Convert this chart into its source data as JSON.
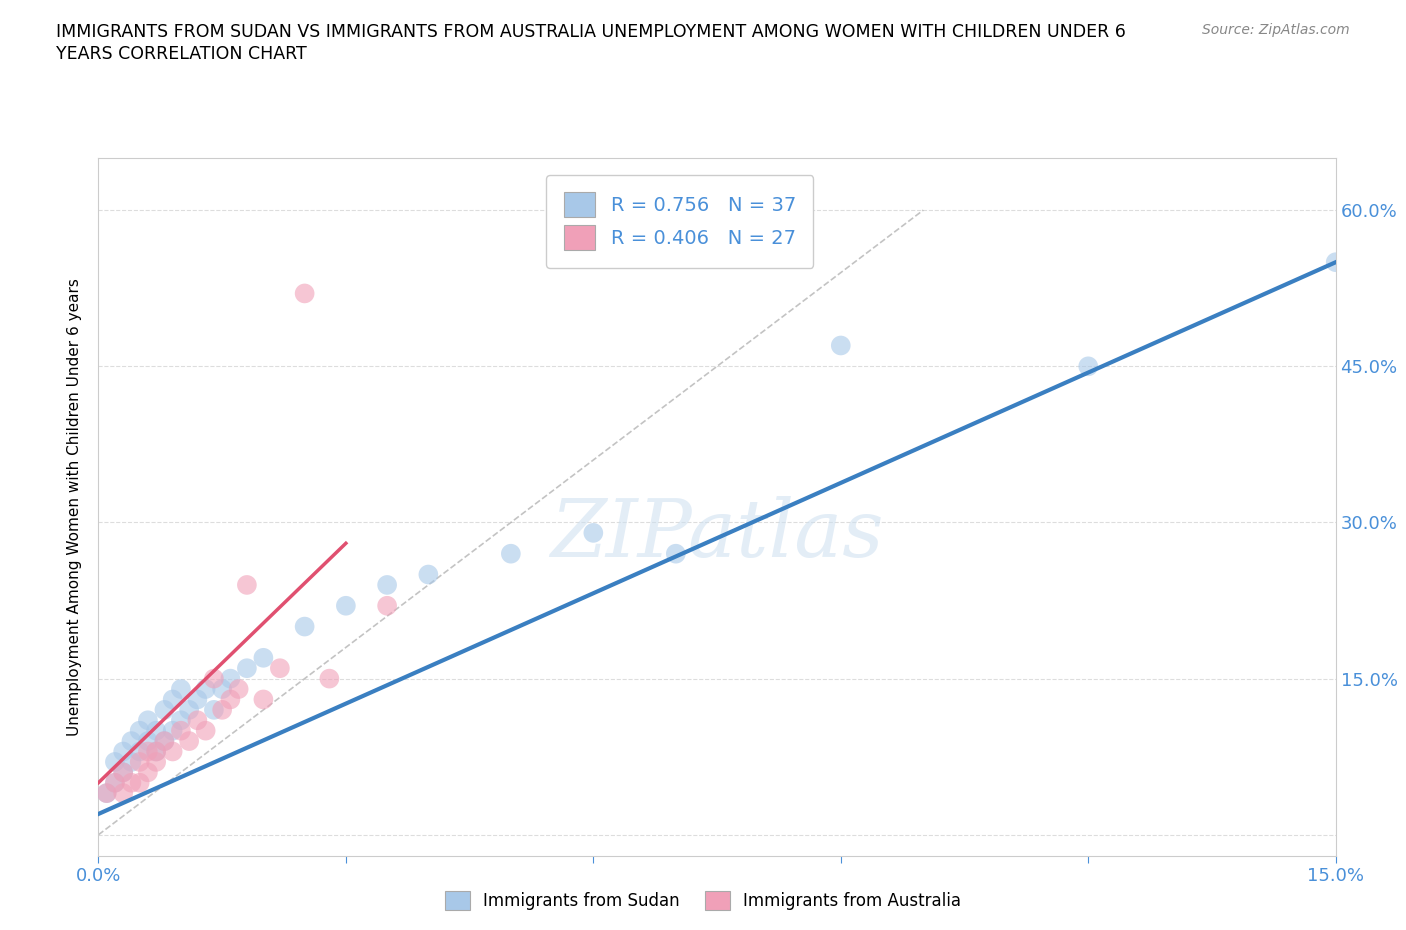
{
  "title_line1": "IMMIGRANTS FROM SUDAN VS IMMIGRANTS FROM AUSTRALIA UNEMPLOYMENT AMONG WOMEN WITH CHILDREN UNDER 6",
  "title_line2": "YEARS CORRELATION CHART",
  "source": "Source: ZipAtlas.com",
  "ylabel": "Unemployment Among Women with Children Under 6 years",
  "xlim": [
    0.0,
    0.15
  ],
  "ylim": [
    -0.02,
    0.65
  ],
  "xticks": [
    0.0,
    0.03,
    0.06,
    0.09,
    0.12,
    0.15
  ],
  "xtick_labels": [
    "0.0%",
    "",
    "",
    "",
    "",
    "15.0%"
  ],
  "yticks": [
    0.0,
    0.15,
    0.3,
    0.45,
    0.6
  ],
  "ytick_labels": [
    "",
    "15.0%",
    "30.0%",
    "45.0%",
    "60.0%"
  ],
  "sudan_color": "#a8c8e8",
  "australia_color": "#f0a0b8",
  "sudan_line_color": "#3a7fc1",
  "australia_line_color": "#e05070",
  "sudan_R": 0.756,
  "sudan_N": 37,
  "australia_R": 0.406,
  "australia_N": 27,
  "watermark": "ZIPatlas",
  "legend_label_sudan": "Immigrants from Sudan",
  "legend_label_australia": "Immigrants from Australia",
  "sudan_x": [
    0.001,
    0.002,
    0.002,
    0.003,
    0.003,
    0.004,
    0.004,
    0.005,
    0.005,
    0.006,
    0.006,
    0.007,
    0.007,
    0.008,
    0.008,
    0.009,
    0.009,
    0.01,
    0.01,
    0.011,
    0.012,
    0.013,
    0.014,
    0.015,
    0.016,
    0.018,
    0.02,
    0.025,
    0.03,
    0.035,
    0.04,
    0.05,
    0.06,
    0.07,
    0.09,
    0.12,
    0.15
  ],
  "sudan_y": [
    0.04,
    0.05,
    0.07,
    0.06,
    0.08,
    0.07,
    0.09,
    0.08,
    0.1,
    0.09,
    0.11,
    0.08,
    0.1,
    0.09,
    0.12,
    0.1,
    0.13,
    0.11,
    0.14,
    0.12,
    0.13,
    0.14,
    0.12,
    0.14,
    0.15,
    0.16,
    0.17,
    0.2,
    0.22,
    0.24,
    0.25,
    0.27,
    0.29,
    0.27,
    0.47,
    0.45,
    0.55
  ],
  "australia_x": [
    0.001,
    0.002,
    0.003,
    0.003,
    0.004,
    0.005,
    0.005,
    0.006,
    0.006,
    0.007,
    0.007,
    0.008,
    0.009,
    0.01,
    0.011,
    0.012,
    0.013,
    0.014,
    0.015,
    0.016,
    0.017,
    0.018,
    0.02,
    0.022,
    0.025,
    0.028,
    0.035
  ],
  "australia_y": [
    0.04,
    0.05,
    0.04,
    0.06,
    0.05,
    0.07,
    0.05,
    0.06,
    0.08,
    0.07,
    0.08,
    0.09,
    0.08,
    0.1,
    0.09,
    0.11,
    0.1,
    0.15,
    0.12,
    0.13,
    0.14,
    0.24,
    0.13,
    0.16,
    0.52,
    0.15,
    0.22
  ],
  "ref_line_x": [
    0.0,
    0.1
  ],
  "ref_line_y": [
    0.0,
    0.6
  ]
}
